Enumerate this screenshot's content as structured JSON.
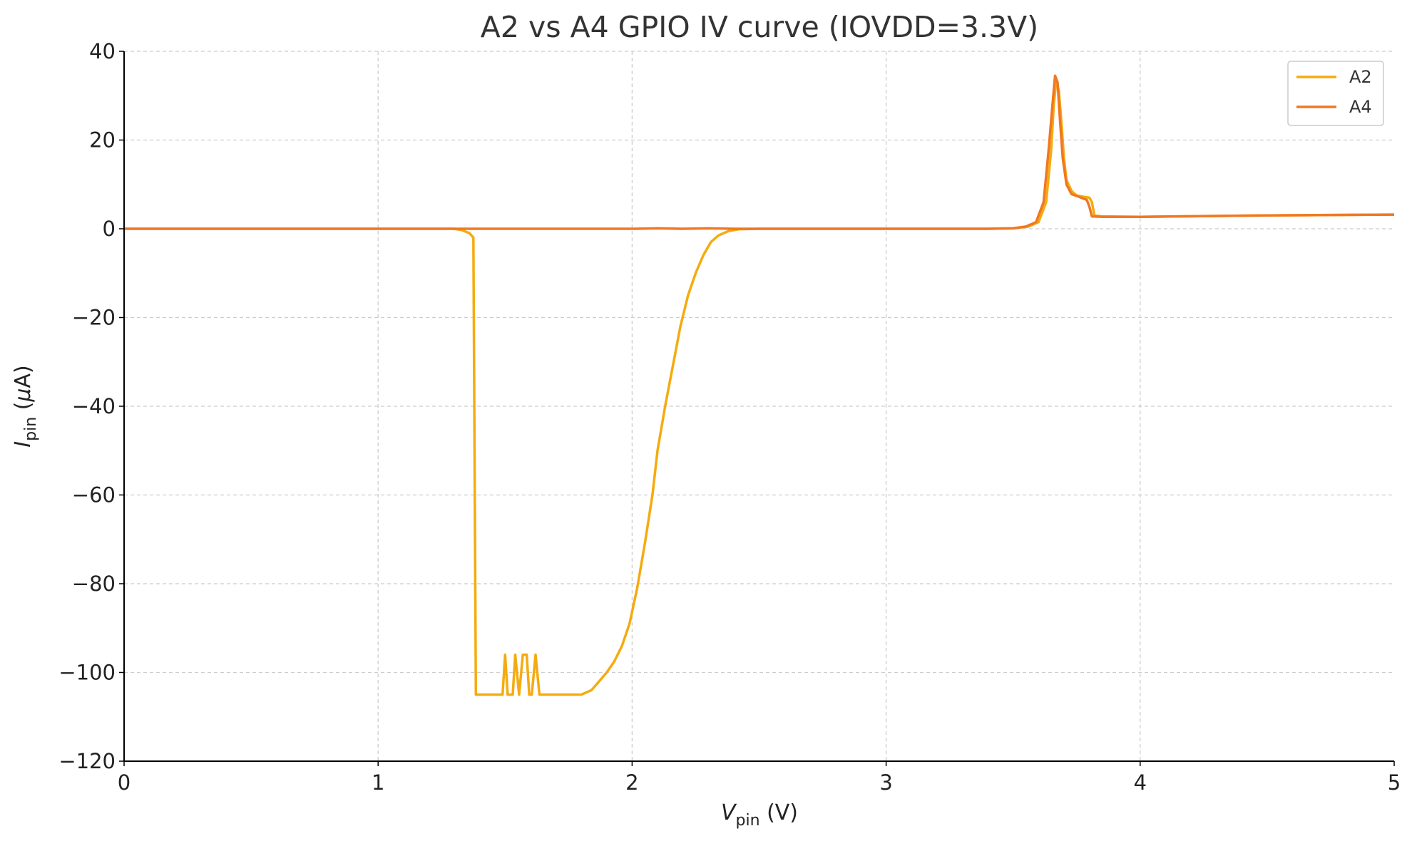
{
  "chart_data": {
    "type": "line",
    "title": "A2 vs A4 GPIO IV curve (IOVDD=3.3V)",
    "xlabel": {
      "main": "V",
      "sub": "pin",
      "unit": " (V)"
    },
    "ylabel": {
      "main": "I",
      "sub": "pin",
      "unit_pre": " (",
      "unit_mu": "μ",
      "unit_post": "A)"
    },
    "xlim": [
      0,
      5
    ],
    "ylim": [
      -120,
      40
    ],
    "xticks": [
      0,
      1,
      2,
      3,
      4,
      5
    ],
    "xtick_labels": [
      "0",
      "1",
      "2",
      "3",
      "4",
      "5"
    ],
    "yticks": [
      -120,
      -100,
      -80,
      -60,
      -40,
      -20,
      0,
      20,
      40
    ],
    "ytick_labels": [
      "−120",
      "−100",
      "−80",
      "−60",
      "−40",
      "−20",
      "0",
      "20",
      "40"
    ],
    "grid": true,
    "legend_position": "top-right",
    "series": [
      {
        "name": "A2",
        "color": "#f5ab0f",
        "points": [
          [
            0,
            0
          ],
          [
            1.0,
            0
          ],
          [
            1.2,
            0
          ],
          [
            1.3,
            0
          ],
          [
            1.33,
            -0.3
          ],
          [
            1.36,
            -1.0
          ],
          [
            1.375,
            -2.0
          ],
          [
            1.385,
            -105
          ],
          [
            1.49,
            -105
          ],
          [
            1.5,
            -96
          ],
          [
            1.51,
            -105
          ],
          [
            1.53,
            -105
          ],
          [
            1.54,
            -96
          ],
          [
            1.555,
            -105
          ],
          [
            1.57,
            -96
          ],
          [
            1.585,
            -96
          ],
          [
            1.595,
            -105
          ],
          [
            1.605,
            -105
          ],
          [
            1.62,
            -96
          ],
          [
            1.635,
            -105
          ],
          [
            1.8,
            -105
          ],
          [
            1.84,
            -104
          ],
          [
            1.87,
            -102
          ],
          [
            1.9,
            -100
          ],
          [
            1.93,
            -97.5
          ],
          [
            1.96,
            -94
          ],
          [
            1.99,
            -89
          ],
          [
            2.02,
            -81
          ],
          [
            2.05,
            -71
          ],
          [
            2.08,
            -60
          ],
          [
            2.1,
            -50
          ],
          [
            2.13,
            -40
          ],
          [
            2.16,
            -31
          ],
          [
            2.19,
            -22
          ],
          [
            2.22,
            -15
          ],
          [
            2.25,
            -10
          ],
          [
            2.28,
            -6
          ],
          [
            2.31,
            -3
          ],
          [
            2.34,
            -1.5
          ],
          [
            2.38,
            -0.5
          ],
          [
            2.42,
            -0.1
          ],
          [
            2.5,
            0
          ],
          [
            3.0,
            0
          ],
          [
            3.4,
            0
          ],
          [
            3.5,
            0.1
          ],
          [
            3.56,
            0.5
          ],
          [
            3.6,
            1.5
          ],
          [
            3.63,
            6
          ],
          [
            3.65,
            18
          ],
          [
            3.66,
            28
          ],
          [
            3.67,
            33.5
          ],
          [
            3.68,
            31
          ],
          [
            3.69,
            24
          ],
          [
            3.7,
            16
          ],
          [
            3.71,
            11
          ],
          [
            3.73,
            8.5
          ],
          [
            3.75,
            7.5
          ],
          [
            3.78,
            7.2
          ],
          [
            3.8,
            7
          ],
          [
            3.81,
            6
          ],
          [
            3.82,
            3
          ],
          [
            3.85,
            2.8
          ],
          [
            4.0,
            2.7
          ],
          [
            4.5,
            3
          ],
          [
            5.0,
            3.2
          ]
        ]
      },
      {
        "name": "A4",
        "color": "#f07822",
        "points": [
          [
            0,
            0
          ],
          [
            1.0,
            0
          ],
          [
            2.0,
            0
          ],
          [
            2.1,
            0.1
          ],
          [
            2.2,
            0
          ],
          [
            2.3,
            0.1
          ],
          [
            2.4,
            0
          ],
          [
            2.5,
            0
          ],
          [
            3.0,
            0
          ],
          [
            3.4,
            0
          ],
          [
            3.5,
            0.1
          ],
          [
            3.55,
            0.5
          ],
          [
            3.59,
            1.5
          ],
          [
            3.62,
            6
          ],
          [
            3.64,
            18
          ],
          [
            3.655,
            28
          ],
          [
            3.665,
            34.5
          ],
          [
            3.675,
            33
          ],
          [
            3.685,
            24
          ],
          [
            3.695,
            16
          ],
          [
            3.71,
            10
          ],
          [
            3.73,
            7.8
          ],
          [
            3.76,
            7.2
          ],
          [
            3.79,
            6.5
          ],
          [
            3.8,
            5
          ],
          [
            3.81,
            2.8
          ],
          [
            3.85,
            2.7
          ],
          [
            4.0,
            2.7
          ],
          [
            4.5,
            3
          ],
          [
            5.0,
            3.2
          ]
        ]
      }
    ]
  }
}
